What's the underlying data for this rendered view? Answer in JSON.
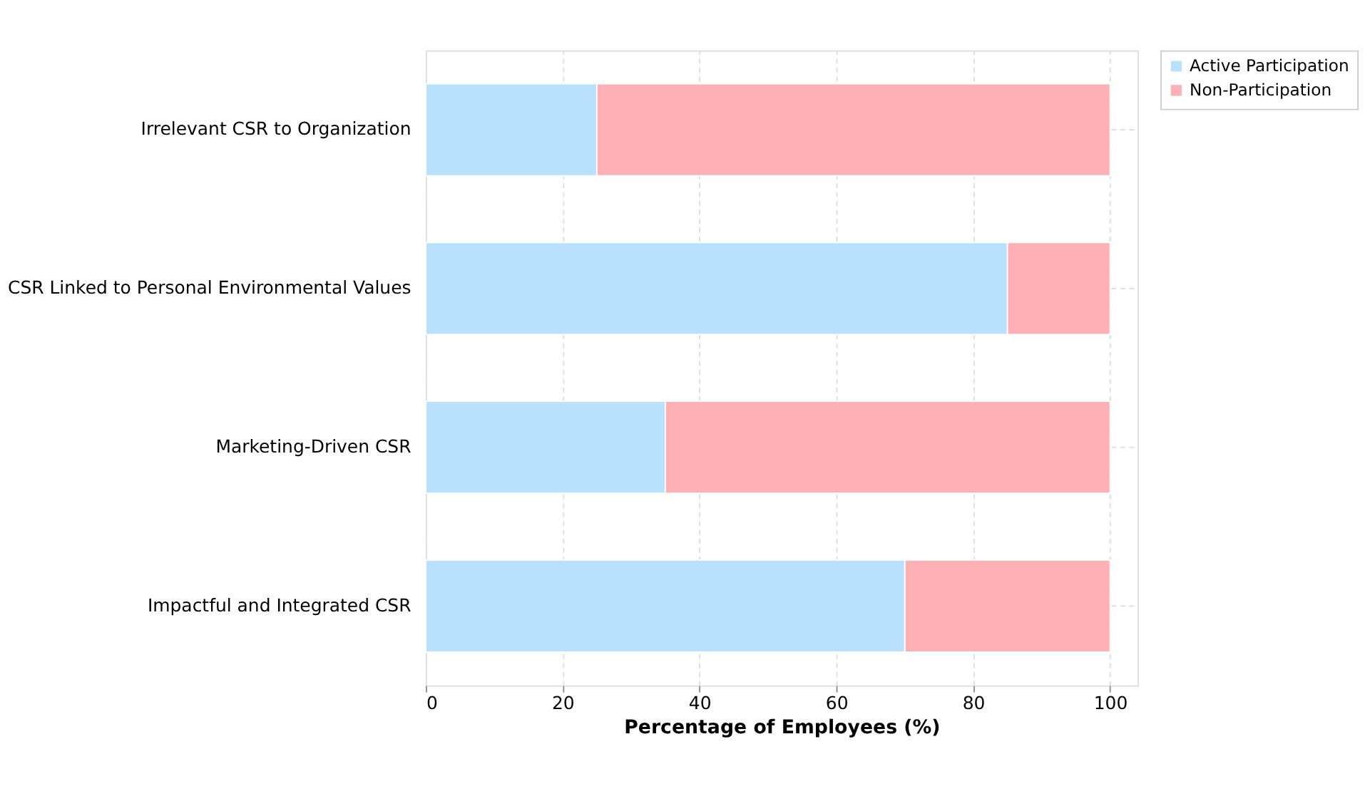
{
  "chart_data": {
    "type": "bar",
    "orientation": "horizontal",
    "stacked": true,
    "categories": [
      "Irrelevant CSR to Organization",
      "CSR Linked to Personal Environmental Values",
      "Marketing-Driven CSR",
      "Impactful and Integrated CSR"
    ],
    "series": [
      {
        "name": "Active Participation",
        "color": "#b9e0fc",
        "values": [
          25,
          85,
          35,
          70
        ]
      },
      {
        "name": "Non-Participation",
        "color": "#fdb1b4",
        "values": [
          75,
          15,
          65,
          30
        ]
      }
    ],
    "xlabel": "Percentage of Employees (%)",
    "xlim": [
      0,
      104
    ],
    "xticks": [
      0,
      20,
      40,
      60,
      80,
      100
    ],
    "grid": true,
    "legend": "right"
  }
}
